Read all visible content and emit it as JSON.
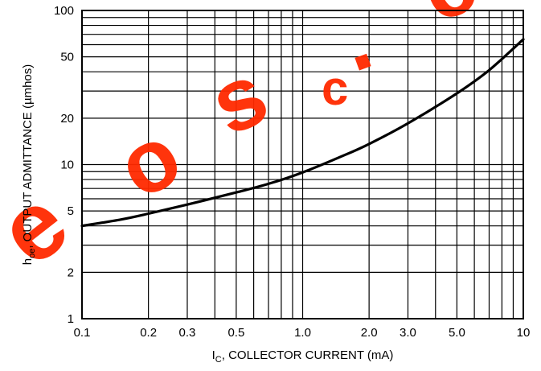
{
  "watermark": {
    "text": "eosc.co",
    "color": "#ff2a00"
  },
  "chart_data": {
    "type": "line",
    "title": "",
    "xlabel": {
      "main": "I",
      "sub": "C",
      "rest": ", COLLECTOR CURRENT (mA)"
    },
    "ylabel": {
      "main": "h",
      "sub": "oe",
      "rest": ", OUTPUT ADMITTANCE (µmhos)"
    },
    "xscale": "log",
    "yscale": "log",
    "xlim": [
      0.1,
      10
    ],
    "ylim": [
      1,
      100
    ],
    "grid": true,
    "x_ticks": [
      {
        "v": 0.1,
        "label": "0.1"
      },
      {
        "v": 0.2,
        "label": "0.2"
      },
      {
        "v": 0.3,
        "label": "0.3"
      },
      {
        "v": 0.5,
        "label": "0.5"
      },
      {
        "v": 1.0,
        "label": "1.0"
      },
      {
        "v": 2.0,
        "label": "2.0"
      },
      {
        "v": 3.0,
        "label": "3.0"
      },
      {
        "v": 5.0,
        "label": "5.0"
      },
      {
        "v": 10,
        "label": "10"
      }
    ],
    "y_ticks": [
      {
        "v": 1,
        "label": "1"
      },
      {
        "v": 2,
        "label": "2"
      },
      {
        "v": 5,
        "label": "5"
      },
      {
        "v": 10,
        "label": "10"
      },
      {
        "v": 20,
        "label": "20"
      },
      {
        "v": 50,
        "label": "50"
      },
      {
        "v": 100,
        "label": "100"
      }
    ],
    "x_grid": [
      0.1,
      0.2,
      0.3,
      0.4,
      0.5,
      0.6,
      0.7,
      0.8,
      0.9,
      1,
      2,
      3,
      4,
      5,
      6,
      7,
      8,
      9,
      10
    ],
    "y_grid": [
      1,
      2,
      3,
      4,
      5,
      6,
      7,
      8,
      9,
      10,
      20,
      30,
      40,
      50,
      60,
      70,
      80,
      90,
      100
    ],
    "series": [
      {
        "x": [
          0.1,
          0.15,
          0.2,
          0.3,
          0.5,
          0.7,
          1.0,
          1.5,
          2.0,
          3.0,
          5.0,
          7.0,
          10
        ],
        "y": [
          4.0,
          4.4,
          4.8,
          5.5,
          6.6,
          7.5,
          8.9,
          11.3,
          13.6,
          18.5,
          29.0,
          41.0,
          65.0
        ]
      }
    ],
    "line_color": "#000000"
  }
}
